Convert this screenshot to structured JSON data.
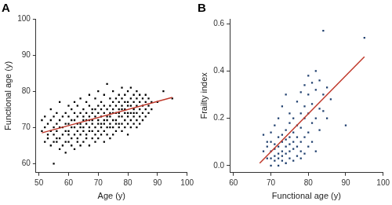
{
  "chart_data": [
    {
      "type": "scatter",
      "title": "A",
      "x_label": "Age (y)",
      "y_label": "Functional age (y)",
      "xlim": [
        49,
        100
      ],
      "xticks": [
        50,
        60,
        70,
        80,
        90,
        100
      ],
      "ylim": [
        57.5,
        100
      ],
      "yticks": [
        60,
        70,
        80,
        90,
        100
      ],
      "grid": false,
      "series": [
        {
          "type": "scatter",
          "color": "#000000",
          "marker": "square",
          "x": [
            51,
            51,
            52,
            52,
            52,
            53,
            53,
            53,
            54,
            54,
            54,
            54,
            55,
            55,
            55,
            55,
            55,
            56,
            56,
            56,
            56,
            56,
            57,
            57,
            57,
            57,
            57,
            58,
            58,
            58,
            58,
            59,
            59,
            59,
            59,
            59,
            60,
            60,
            60,
            60,
            60,
            60,
            61,
            61,
            61,
            61,
            61,
            62,
            62,
            62,
            62,
            62,
            62,
            63,
            63,
            63,
            63,
            63,
            63,
            64,
            64,
            64,
            64,
            64,
            64,
            65,
            65,
            65,
            65,
            65,
            65,
            66,
            66,
            66,
            66,
            66,
            66,
            67,
            67,
            67,
            67,
            67,
            67,
            67,
            68,
            68,
            68,
            68,
            68,
            68,
            69,
            69,
            69,
            69,
            69,
            69,
            70,
            70,
            70,
            70,
            70,
            70,
            70,
            71,
            71,
            71,
            71,
            71,
            71,
            72,
            72,
            72,
            72,
            72,
            72,
            72,
            73,
            73,
            73,
            73,
            73,
            73,
            74,
            74,
            74,
            74,
            74,
            74,
            74,
            75,
            75,
            75,
            75,
            75,
            75,
            75,
            76,
            76,
            76,
            76,
            76,
            76,
            77,
            77,
            77,
            77,
            77,
            77,
            77,
            78,
            78,
            78,
            78,
            78,
            78,
            78,
            79,
            79,
            79,
            79,
            79,
            79,
            80,
            80,
            80,
            80,
            80,
            80,
            80,
            81,
            81,
            81,
            81,
            81,
            81,
            82,
            82,
            82,
            82,
            82,
            82,
            83,
            83,
            83,
            83,
            83,
            83,
            84,
            84,
            84,
            84,
            84,
            85,
            85,
            85,
            85,
            86,
            86,
            86,
            86,
            87,
            87,
            87,
            88,
            88,
            90,
            92,
            95
          ],
          "values": [
            69,
            72,
            66,
            70,
            73,
            67,
            68,
            71,
            65,
            69,
            72,
            75,
            60,
            66,
            68,
            70,
            73,
            66,
            67,
            69,
            71,
            74,
            64,
            67,
            70,
            72,
            77,
            65,
            68,
            70,
            73,
            63,
            66,
            69,
            71,
            74,
            66,
            68,
            69,
            71,
            73,
            76,
            65,
            67,
            70,
            72,
            75,
            64,
            68,
            70,
            72,
            74,
            77,
            66,
            67,
            69,
            71,
            73,
            76,
            65,
            68,
            70,
            71,
            74,
            78,
            66,
            69,
            70,
            72,
            73,
            75,
            67,
            68,
            71,
            72,
            74,
            77,
            65,
            69,
            70,
            72,
            73,
            76,
            79,
            67,
            69,
            71,
            72,
            74,
            75,
            66,
            68,
            70,
            73,
            75,
            78,
            67,
            69,
            71,
            72,
            74,
            76,
            80,
            68,
            70,
            71,
            73,
            75,
            77,
            66,
            69,
            71,
            72,
            74,
            76,
            79,
            68,
            70,
            72,
            73,
            75,
            82,
            67,
            70,
            71,
            73,
            74,
            76,
            78,
            68,
            70,
            72,
            74,
            75,
            77,
            80,
            69,
            71,
            72,
            74,
            76,
            78,
            70,
            71,
            73,
            74,
            75,
            77,
            79,
            69,
            71,
            73,
            75,
            76,
            78,
            81,
            70,
            72,
            74,
            75,
            77,
            79,
            68,
            71,
            73,
            74,
            76,
            77,
            80,
            70,
            72,
            74,
            76,
            78,
            81,
            71,
            73,
            74,
            75,
            77,
            79,
            70,
            72,
            74,
            76,
            78,
            80,
            71,
            73,
            75,
            77,
            79,
            72,
            74,
            76,
            78,
            73,
            75,
            77,
            79,
            74,
            76,
            78,
            75,
            77,
            77,
            80,
            78
          ]
        },
        {
          "type": "line",
          "color": "#c0392b",
          "line_style": "solid",
          "x": [
            51,
            95
          ],
          "values": [
            68.5,
            78.3
          ]
        }
      ]
    },
    {
      "type": "scatter",
      "title": "B",
      "x_label": "Functional age (y)",
      "y_label": "Frailty index",
      "xlim": [
        59,
        100
      ],
      "xticks": [
        60,
        70,
        80,
        90,
        100
      ],
      "ylim": [
        -0.03,
        0.62
      ],
      "yticks": [
        {
          "value": 0,
          "label": "0.0"
        },
        0.2,
        0.4,
        0.6
      ],
      "grid": false,
      "series": [
        {
          "type": "scatter",
          "color": "#1f3f6e",
          "marker": "square",
          "x": [
            68,
            68,
            69,
            69,
            69,
            70,
            70,
            70,
            70,
            70,
            71,
            71,
            71,
            71,
            71,
            72,
            72,
            72,
            72,
            72,
            72,
            73,
            73,
            73,
            73,
            73,
            73,
            74,
            74,
            74,
            74,
            74,
            74,
            75,
            75,
            75,
            75,
            75,
            75,
            76,
            76,
            76,
            76,
            76,
            77,
            77,
            77,
            77,
            77,
            78,
            78,
            78,
            78,
            78,
            78,
            79,
            79,
            79,
            79,
            79,
            80,
            80,
            80,
            80,
            80,
            81,
            81,
            81,
            81,
            82,
            82,
            82,
            82,
            83,
            83,
            83,
            84,
            84,
            84,
            85,
            85,
            86,
            90,
            95
          ],
          "values": [
            0.06,
            0.13,
            0.03,
            0.08,
            0.1,
            0.0,
            0.03,
            0.06,
            0.1,
            0.14,
            0.02,
            0.04,
            0.07,
            0.09,
            0.17,
            0.0,
            0.03,
            0.05,
            0.08,
            0.12,
            0.2,
            0.02,
            0.04,
            0.06,
            0.1,
            0.13,
            0.25,
            0.01,
            0.05,
            0.08,
            0.11,
            0.15,
            0.3,
            0.03,
            0.06,
            0.09,
            0.12,
            0.18,
            0.22,
            0.02,
            0.07,
            0.1,
            0.14,
            0.2,
            0.04,
            0.08,
            0.12,
            0.17,
            0.27,
            0.03,
            0.06,
            0.1,
            0.16,
            0.22,
            0.31,
            0.05,
            0.12,
            0.2,
            0.25,
            0.34,
            0.08,
            0.14,
            0.22,
            0.3,
            0.38,
            0.1,
            0.18,
            0.26,
            0.35,
            0.06,
            0.2,
            0.32,
            0.4,
            0.15,
            0.24,
            0.36,
            0.23,
            0.3,
            0.57,
            0.2,
            0.33,
            0.28,
            0.17,
            0.54
          ]
        },
        {
          "type": "line",
          "color": "#c0392b",
          "line_style": "solid",
          "x": [
            67,
            95
          ],
          "values": [
            0.01,
            0.46
          ]
        }
      ]
    }
  ]
}
